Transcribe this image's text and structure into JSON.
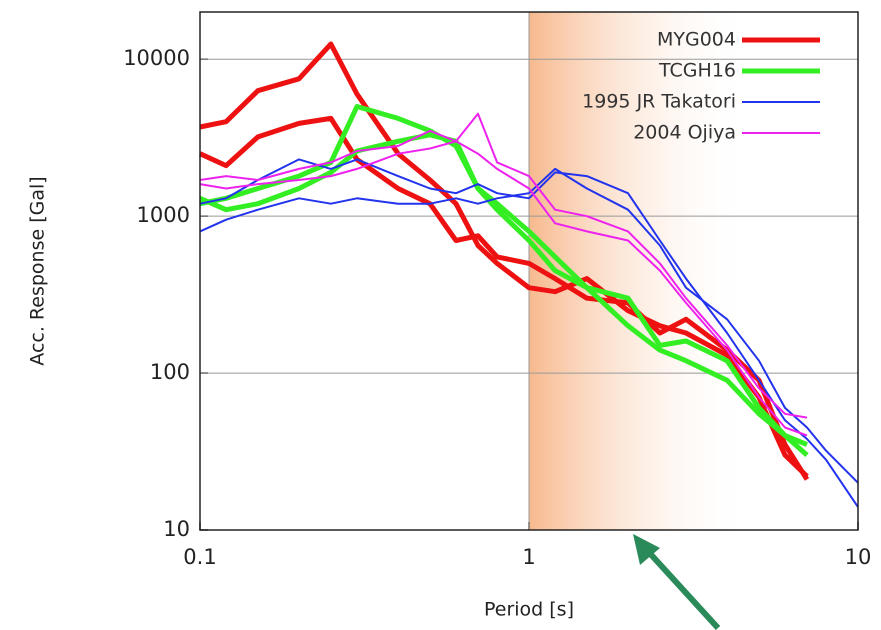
{
  "chart_data": {
    "type": "line",
    "xlabel": "Period [s]",
    "ylabel": "Acc. Response [Gal]",
    "log_x": true,
    "log_y": true,
    "xlim": [
      0.1,
      10
    ],
    "ylim": [
      10,
      20000
    ],
    "xticks": [
      0.1,
      1,
      10
    ],
    "yticks": [
      10,
      100,
      1000,
      10000
    ],
    "grid": true,
    "legend": "top-right",
    "x": [
      0.1,
      0.12,
      0.15,
      0.2,
      0.25,
      0.3,
      0.4,
      0.5,
      0.6,
      0.7,
      0.8,
      1,
      1.2,
      1.5,
      2,
      2.5,
      3,
      4,
      5,
      6,
      7,
      8,
      10
    ],
    "series": [
      {
        "name": "MYG004",
        "color": "#ee1111",
        "line_width": 5,
        "values": [
          3700,
          4000,
          6300,
          7500,
          12500,
          6000,
          2500,
          1700,
          1200,
          650,
          500,
          350,
          330,
          400,
          250,
          200,
          180,
          130,
          70,
          30,
          22,
          null,
          null
        ]
      },
      {
        "color": "#ee1111",
        "line_width": 5,
        "values": [
          2500,
          2100,
          3200,
          3900,
          4200,
          2300,
          1500,
          1200,
          700,
          750,
          550,
          500,
          400,
          300,
          280,
          180,
          220,
          140,
          90,
          35,
          21,
          null,
          null
        ]
      },
      {
        "name": "TCGH16",
        "color": "#33ee22",
        "line_width": 5,
        "values": [
          1200,
          1300,
          1500,
          1800,
          2200,
          5000,
          4200,
          3500,
          2800,
          1500,
          1100,
          700,
          450,
          350,
          300,
          150,
          160,
          120,
          60,
          40,
          30,
          null,
          null
        ]
      },
      {
        "color": "#33ee22",
        "line_width": 5,
        "values": [
          1300,
          1100,
          1200,
          1500,
          1900,
          2600,
          3000,
          3300,
          3000,
          1500,
          1200,
          800,
          550,
          350,
          200,
          140,
          120,
          90,
          55,
          40,
          35,
          null,
          null
        ]
      },
      {
        "name": "1995 JR Takatori",
        "color": "#2233ee",
        "line_width": 2,
        "values": [
          800,
          950,
          1100,
          1300,
          1200,
          1300,
          1200,
          1200,
          1300,
          1200,
          1300,
          1400,
          2000,
          1500,
          1100,
          650,
          350,
          220,
          120,
          60,
          45,
          32,
          20
        ]
      },
      {
        "color": "#2233ee",
        "line_width": 2,
        "values": [
          1200,
          1300,
          1700,
          2300,
          2000,
          2300,
          1800,
          1500,
          1400,
          1600,
          1400,
          1300,
          1900,
          1800,
          1400,
          700,
          400,
          180,
          90,
          50,
          38,
          28,
          14
        ]
      },
      {
        "name": "2004 Ojiya",
        "color": "#ee22ee",
        "line_width": 2,
        "values": [
          1700,
          1800,
          1700,
          2000,
          2200,
          2600,
          2800,
          3500,
          3000,
          4500,
          2200,
          1800,
          1100,
          1000,
          800,
          500,
          300,
          150,
          80,
          55,
          52,
          null,
          null
        ]
      },
      {
        "color": "#ee22ee",
        "line_width": 2,
        "values": [
          1600,
          1500,
          1600,
          1700,
          1800,
          2000,
          2500,
          2700,
          3000,
          2500,
          2000,
          1500,
          900,
          800,
          700,
          450,
          280,
          140,
          70,
          45,
          40,
          null,
          null
        ]
      }
    ]
  }
}
